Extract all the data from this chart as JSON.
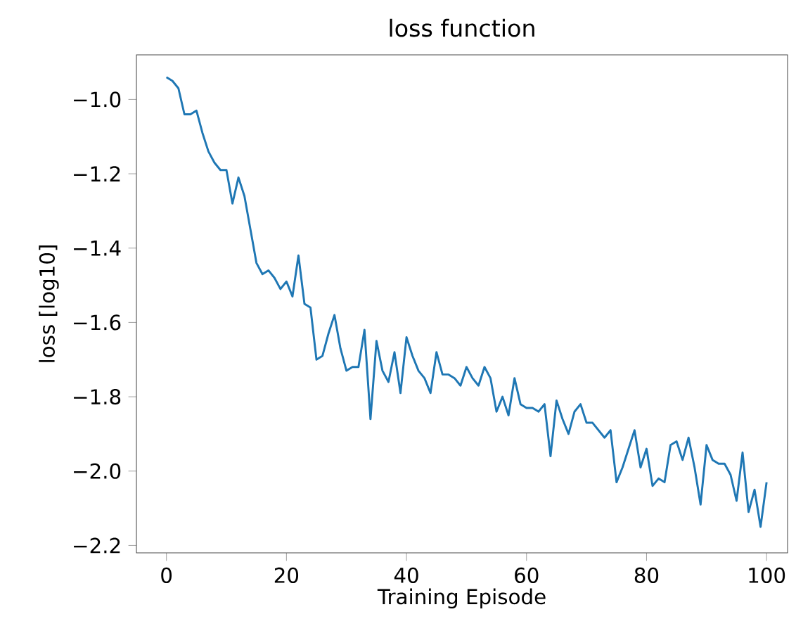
{
  "chart_data": {
    "type": "line",
    "title": "loss function",
    "xlabel": "Training Episode",
    "ylabel": "loss [log10]",
    "x": [
      0,
      1,
      2,
      3,
      4,
      5,
      6,
      7,
      8,
      9,
      10,
      11,
      12,
      13,
      14,
      15,
      16,
      17,
      18,
      19,
      20,
      21,
      22,
      23,
      24,
      25,
      26,
      27,
      28,
      29,
      30,
      31,
      32,
      33,
      34,
      35,
      36,
      37,
      38,
      39,
      40,
      41,
      42,
      43,
      44,
      45,
      46,
      47,
      48,
      49,
      50,
      51,
      52,
      53,
      54,
      55,
      56,
      57,
      58,
      59,
      60,
      61,
      62,
      63,
      64,
      65,
      66,
      67,
      68,
      69,
      70,
      71,
      72,
      73,
      74,
      75,
      76,
      77,
      78,
      79,
      80,
      81,
      82,
      83,
      84,
      85,
      86,
      87,
      88,
      89,
      90,
      91,
      92,
      93,
      94,
      95,
      96,
      97,
      98,
      99,
      100
    ],
    "series": [
      {
        "color": "#1f77b4",
        "values": [
          -0.94,
          -0.95,
          -0.97,
          -1.04,
          -1.04,
          -1.03,
          -1.09,
          -1.14,
          -1.17,
          -1.19,
          -1.19,
          -1.28,
          -1.21,
          -1.26,
          -1.35,
          -1.44,
          -1.47,
          -1.46,
          -1.48,
          -1.51,
          -1.49,
          -1.53,
          -1.42,
          -1.55,
          -1.56,
          -1.7,
          -1.69,
          -1.63,
          -1.58,
          -1.67,
          -1.73,
          -1.72,
          -1.72,
          -1.62,
          -1.86,
          -1.65,
          -1.73,
          -1.76,
          -1.68,
          -1.79,
          -1.64,
          -1.69,
          -1.73,
          -1.75,
          -1.79,
          -1.68,
          -1.74,
          -1.74,
          -1.75,
          -1.77,
          -1.72,
          -1.75,
          -1.77,
          -1.72,
          -1.75,
          -1.84,
          -1.8,
          -1.85,
          -1.75,
          -1.82,
          -1.83,
          -1.83,
          -1.84,
          -1.82,
          -1.96,
          -1.81,
          -1.86,
          -1.9,
          -1.84,
          -1.82,
          -1.87,
          -1.87,
          -1.89,
          -1.91,
          -1.89,
          -2.03,
          -1.99,
          -1.94,
          -1.89,
          -1.99,
          -1.94,
          -2.04,
          -2.02,
          -2.03,
          -1.93,
          -1.92,
          -1.97,
          -1.91,
          -1.99,
          -2.09,
          -1.93,
          -1.97,
          -1.98,
          -1.98,
          -2.01,
          -2.08,
          -1.95,
          -2.11,
          -2.05,
          -2.15,
          -2.03
        ]
      }
    ],
    "xlim": [
      -5,
      103.5
    ],
    "ylim": [
      -2.22,
      -0.88
    ],
    "xticks": [
      0,
      20,
      40,
      60,
      80,
      100
    ],
    "yticks": [
      {
        "value": -2.2,
        "label": "−2.2"
      },
      {
        "value": -2.0,
        "label": "−2.0"
      },
      {
        "value": -1.8,
        "label": "−1.8"
      },
      {
        "value": -1.6,
        "label": "−1.6"
      },
      {
        "value": -1.4,
        "label": "−1.4"
      },
      {
        "value": -1.2,
        "label": "−1.2"
      },
      {
        "value": -1.0,
        "label": "−1.0"
      }
    ]
  }
}
